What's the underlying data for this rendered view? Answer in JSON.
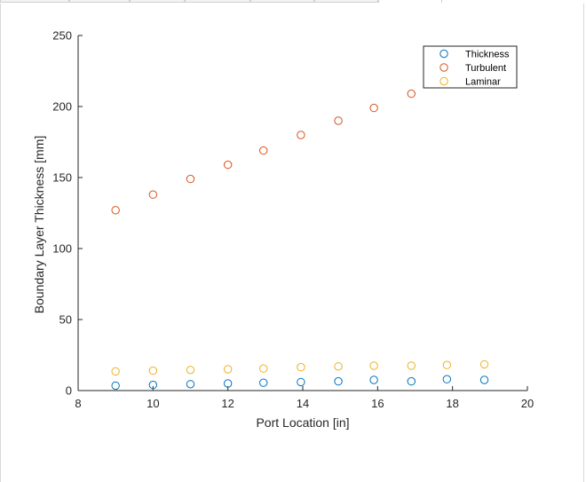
{
  "chart_data": {
    "type": "scatter",
    "title": "",
    "xlabel": "Port Location [in]",
    "ylabel": "Boundary Layer Thickness [mm]",
    "xlim": [
      8,
      20
    ],
    "ylim": [
      0,
      250
    ],
    "xticks": [
      8,
      10,
      12,
      14,
      16,
      18,
      20
    ],
    "yticks": [
      0,
      50,
      100,
      150,
      200,
      250
    ],
    "xtick_labels": [
      "8",
      "10",
      "12",
      "14",
      "16",
      "18",
      "20"
    ],
    "ytick_labels": [
      "0",
      "50",
      "100",
      "150",
      "200",
      "250"
    ],
    "grid": false,
    "legend_position": "top-right",
    "marker": "open-circle",
    "series": [
      {
        "name": "Thickness",
        "color": "#0072BD",
        "points": [
          [
            9.0,
            3.5
          ],
          [
            10.0,
            4.0
          ],
          [
            11.0,
            4.5
          ],
          [
            12.0,
            5.0
          ],
          [
            12.95,
            5.5
          ],
          [
            13.95,
            6.0
          ],
          [
            14.95,
            6.5
          ],
          [
            15.9,
            7.5
          ],
          [
            16.9,
            6.5
          ],
          [
            17.85,
            8.0
          ],
          [
            18.85,
            7.5
          ]
        ]
      },
      {
        "name": "Turbulent",
        "color": "#D95319",
        "points": [
          [
            9.0,
            127
          ],
          [
            10.0,
            138
          ],
          [
            11.0,
            149
          ],
          [
            12.0,
            159
          ],
          [
            12.95,
            169
          ],
          [
            13.95,
            180
          ],
          [
            14.95,
            190
          ],
          [
            15.9,
            199
          ],
          [
            16.9,
            209
          ]
        ]
      },
      {
        "name": "Laminar",
        "color": "#EDB120",
        "points": [
          [
            9.0,
            13.5
          ],
          [
            10.0,
            14
          ],
          [
            11.0,
            14.5
          ],
          [
            12.0,
            15
          ],
          [
            12.95,
            15.5
          ],
          [
            13.95,
            16.5
          ],
          [
            14.95,
            17
          ],
          [
            15.9,
            17.5
          ],
          [
            16.9,
            17.5
          ],
          [
            17.85,
            18
          ],
          [
            18.85,
            18.5
          ]
        ]
      }
    ]
  }
}
